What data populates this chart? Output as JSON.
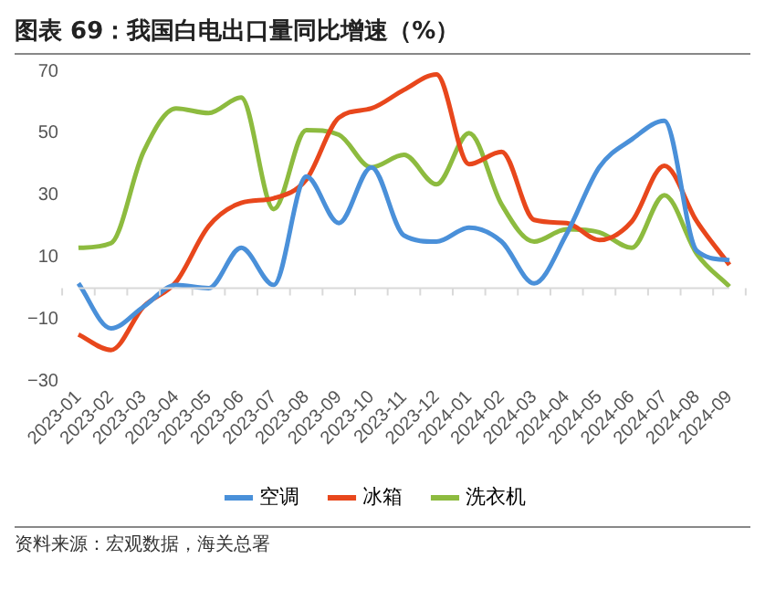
{
  "chart_data": {
    "type": "line",
    "title": "图表 69：我国白电出口量同比增速（%）",
    "annotations": [
      "资料来源：宏观数据，海关总署"
    ],
    "categories": [
      "2023-01",
      "2023-02",
      "2023-03",
      "2023-04",
      "2023-05",
      "2023-06",
      "2023-07",
      "2023-08",
      "2023-09",
      "2023-10",
      "2023-11",
      "2023-12",
      "2024-01",
      "2024-02",
      "2024-03",
      "2024-04",
      "2024-05",
      "2024-06",
      "2024-07",
      "2024-08",
      "2024-09"
    ],
    "series": [
      {
        "name": "空调",
        "color": "#4a90d9",
        "values": [
          1.5,
          -13,
          -6,
          1,
          0,
          13,
          1,
          36,
          21,
          39,
          17,
          15,
          19.5,
          15,
          1.5,
          17.5,
          39,
          48,
          54,
          12,
          9
        ]
      },
      {
        "name": "冰箱",
        "color": "#e8471c",
        "values": [
          -15,
          -20,
          -6,
          2,
          20,
          27.5,
          29,
          35,
          55,
          58,
          64,
          69,
          40,
          44,
          22,
          21,
          15.5,
          21.5,
          39.5,
          21.5,
          7.5
        ]
      },
      {
        "name": "洗衣机",
        "color": "#8dbb3f",
        "values": [
          13,
          14.5,
          44,
          58,
          56.5,
          61.5,
          25.5,
          51,
          49.5,
          39,
          43,
          33.5,
          50,
          27,
          15,
          19,
          18,
          13,
          30,
          11,
          0.5
        ]
      }
    ],
    "ylim": [
      -30,
      70
    ],
    "yticks": [
      70,
      50,
      30,
      10,
      -10,
      -30
    ],
    "grid": false,
    "legend": "bottom",
    "marker": "none",
    "line_style": "solid"
  }
}
